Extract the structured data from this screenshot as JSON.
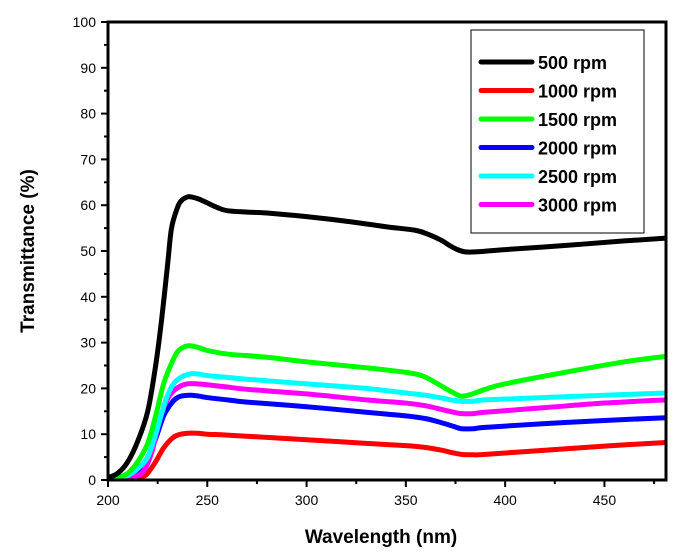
{
  "chart_data": {
    "type": "line",
    "title": "",
    "xlabel": "Wavelength (nm)",
    "ylabel": "Transmittance (%)",
    "xlim": [
      200,
      481
    ],
    "ylim": [
      0,
      100
    ],
    "x_ticks": [
      200,
      250,
      300,
      350,
      400,
      450
    ],
    "x_minor_ticks": [
      225,
      275,
      325,
      375,
      425,
      475
    ],
    "y_ticks": [
      0,
      10,
      20,
      30,
      40,
      50,
      60,
      70,
      80,
      90,
      100
    ],
    "y_minor_ticks": [
      5,
      15,
      25,
      35,
      45,
      55,
      65,
      75,
      85,
      95
    ],
    "grid": false,
    "legend_position": "top-right",
    "series": [
      {
        "name": "500 rpm",
        "color": "#000000",
        "x": [
          200,
          205,
          210,
          215,
          220,
          224,
          227,
          230,
          232,
          235,
          237,
          240,
          242,
          246,
          250,
          255,
          260,
          270,
          280,
          300,
          320,
          340,
          355,
          362,
          368,
          372,
          376,
          380,
          385,
          400,
          430,
          460,
          481
        ],
        "y": [
          0.5,
          1.5,
          4,
          8.5,
          15,
          25,
          35,
          47,
          55,
          59.5,
          61,
          61.8,
          61.8,
          61.3,
          60.5,
          59.5,
          58.8,
          58.5,
          58.3,
          57.5,
          56.5,
          55.3,
          54.5,
          53.5,
          52.3,
          51.2,
          50.3,
          49.8,
          49.8,
          50.3,
          51.2,
          52.2,
          52.8
        ]
      },
      {
        "name": "1000 rpm",
        "color": "#ff0000",
        "x": [
          200,
          210,
          215,
          218,
          220,
          224,
          228,
          232,
          235,
          240,
          245,
          250,
          260,
          280,
          300,
          330,
          350,
          360,
          368,
          374,
          378,
          384,
          390,
          420,
          450,
          481
        ],
        "y": [
          0,
          0,
          0.2,
          0.8,
          1.5,
          4,
          7,
          9,
          9.8,
          10.2,
          10.2,
          10,
          9.8,
          9.3,
          8.8,
          8,
          7.5,
          7.1,
          6.5,
          5.9,
          5.6,
          5.5,
          5.6,
          6.5,
          7.4,
          8.2
        ]
      },
      {
        "name": "1500 rpm",
        "color": "#00ff00",
        "x": [
          200,
          205,
          210,
          215,
          220,
          224,
          228,
          232,
          235,
          238,
          241,
          245,
          250,
          260,
          280,
          300,
          330,
          350,
          358,
          364,
          370,
          375,
          378,
          382,
          390,
          400,
          430,
          460,
          481
        ],
        "y": [
          0,
          0.5,
          1.5,
          4,
          8,
          14,
          21,
          25.5,
          28,
          29,
          29.3,
          29,
          28.3,
          27.5,
          26.8,
          25.8,
          24.5,
          23.5,
          22.8,
          21.5,
          20,
          18.8,
          18.3,
          18.6,
          19.8,
          21,
          23.5,
          25.8,
          27
        ]
      },
      {
        "name": "2000 rpm",
        "color": "#0000ff",
        "x": [
          200,
          205,
          210,
          215,
          220,
          224,
          228,
          232,
          235,
          238,
          242,
          246,
          250,
          260,
          270,
          300,
          330,
          350,
          360,
          368,
          374,
          378,
          384,
          390,
          420,
          450,
          481
        ],
        "y": [
          0,
          0.2,
          0.5,
          2,
          5,
          9,
          14,
          16.8,
          18,
          18.4,
          18.5,
          18.3,
          18,
          17.5,
          17,
          16,
          14.8,
          14,
          13.4,
          12.5,
          11.7,
          11.2,
          11.2,
          11.5,
          12.3,
          13,
          13.6
        ]
      },
      {
        "name": "2500 rpm",
        "color": "#00ffff",
        "x": [
          200,
          205,
          210,
          215,
          220,
          224,
          228,
          231,
          234,
          238,
          242,
          246,
          250,
          260,
          270,
          300,
          330,
          350,
          360,
          368,
          374,
          378,
          384,
          390,
          420,
          450,
          481
        ],
        "y": [
          0.3,
          0.5,
          1,
          2.5,
          5,
          10,
          16,
          19.5,
          21.5,
          22.7,
          23.2,
          23.1,
          22.8,
          22.4,
          22,
          21,
          20,
          19,
          18.5,
          17.9,
          17.4,
          17.2,
          17.2,
          17.5,
          18,
          18.5,
          19
        ]
      },
      {
        "name": "3000 rpm",
        "color": "#ff00ff",
        "x": [
          200,
          205,
          210,
          214,
          218,
          222,
          226,
          229,
          232,
          236,
          240,
          245,
          250,
          260,
          270,
          300,
          330,
          350,
          360,
          368,
          374,
          378,
          384,
          390,
          420,
          450,
          481
        ],
        "y": [
          0,
          0.1,
          0.3,
          0.8,
          2,
          6,
          13,
          16.8,
          19,
          20.4,
          21,
          21,
          20.8,
          20.3,
          19.8,
          18.8,
          17.5,
          16.8,
          16.2,
          15.4,
          14.8,
          14.5,
          14.5,
          14.8,
          15.8,
          16.8,
          17.5
        ]
      }
    ]
  }
}
